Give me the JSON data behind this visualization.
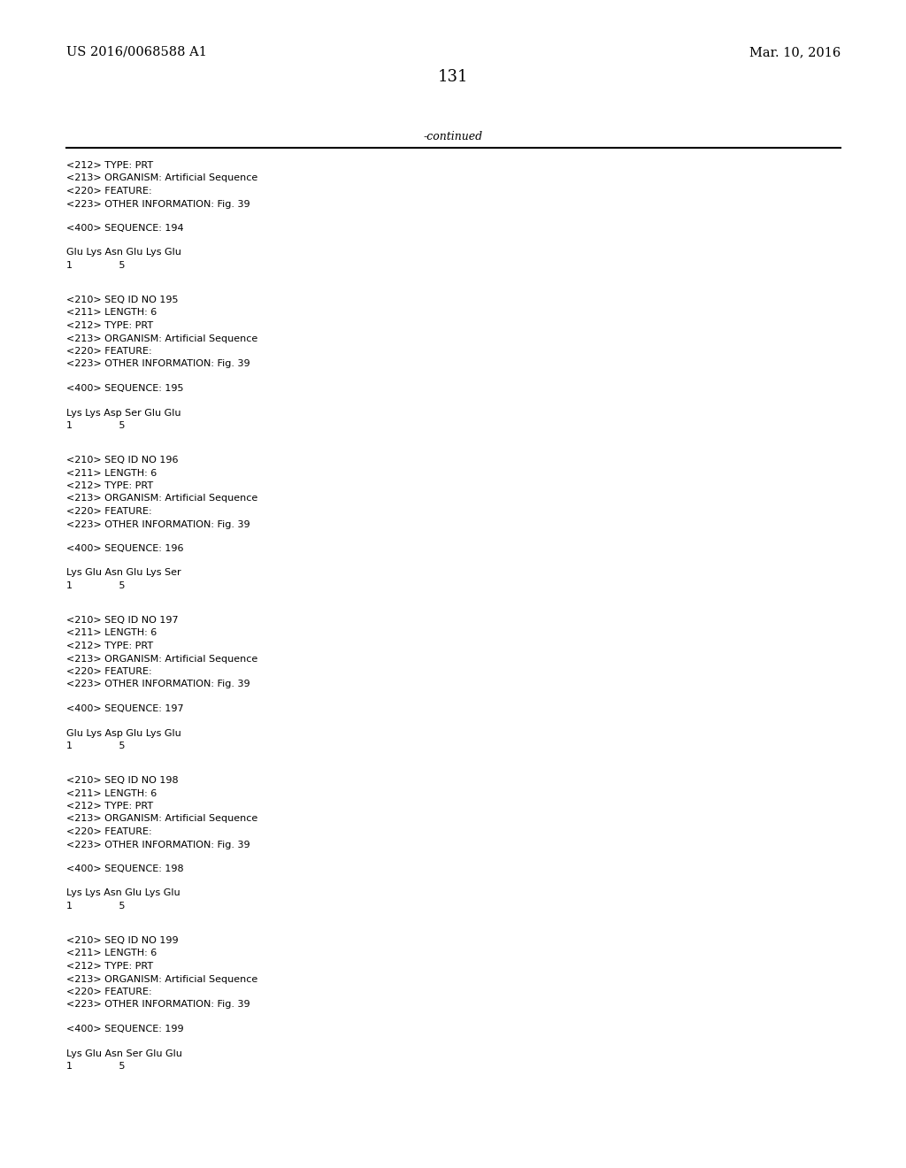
{
  "background_color": "#ffffff",
  "header_left": "US 2016/0068588 A1",
  "header_right": "Mar. 10, 2016",
  "page_number": "131",
  "continued_label": "-continued",
  "mono_font": "Courier New",
  "serif_font": "DejaVu Serif",
  "sections": [
    {
      "type": "partial_entry",
      "lines": [
        "<212> TYPE: PRT",
        "<213> ORGANISM: Artificial Sequence",
        "<220> FEATURE:",
        "<223> OTHER INFORMATION: Fig. 39"
      ],
      "seq_label": "<400> SEQUENCE: 194",
      "seq_line": "Glu Lys Asn Glu Lys Glu",
      "num_line": "1               5"
    },
    {
      "type": "full_entry",
      "id_lines": [
        "<210> SEQ ID NO 195",
        "<211> LENGTH: 6",
        "<212> TYPE: PRT",
        "<213> ORGANISM: Artificial Sequence",
        "<220> FEATURE:",
        "<223> OTHER INFORMATION: Fig. 39"
      ],
      "seq_label": "<400> SEQUENCE: 195",
      "seq_line": "Lys Lys Asp Ser Glu Glu",
      "num_line": "1               5"
    },
    {
      "type": "full_entry",
      "id_lines": [
        "<210> SEQ ID NO 196",
        "<211> LENGTH: 6",
        "<212> TYPE: PRT",
        "<213> ORGANISM: Artificial Sequence",
        "<220> FEATURE:",
        "<223> OTHER INFORMATION: Fig. 39"
      ],
      "seq_label": "<400> SEQUENCE: 196",
      "seq_line": "Lys Glu Asn Glu Lys Ser",
      "num_line": "1               5"
    },
    {
      "type": "full_entry",
      "id_lines": [
        "<210> SEQ ID NO 197",
        "<211> LENGTH: 6",
        "<212> TYPE: PRT",
        "<213> ORGANISM: Artificial Sequence",
        "<220> FEATURE:",
        "<223> OTHER INFORMATION: Fig. 39"
      ],
      "seq_label": "<400> SEQUENCE: 197",
      "seq_line": "Glu Lys Asp Glu Lys Glu",
      "num_line": "1               5"
    },
    {
      "type": "full_entry",
      "id_lines": [
        "<210> SEQ ID NO 198",
        "<211> LENGTH: 6",
        "<212> TYPE: PRT",
        "<213> ORGANISM: Artificial Sequence",
        "<220> FEATURE:",
        "<223> OTHER INFORMATION: Fig. 39"
      ],
      "seq_label": "<400> SEQUENCE: 198",
      "seq_line": "Lys Lys Asn Glu Lys Glu",
      "num_line": "1               5"
    },
    {
      "type": "full_entry",
      "id_lines": [
        "<210> SEQ ID NO 199",
        "<211> LENGTH: 6",
        "<212> TYPE: PRT",
        "<213> ORGANISM: Artificial Sequence",
        "<220> FEATURE:",
        "<223> OTHER INFORMATION: Fig. 39"
      ],
      "seq_label": "<400> SEQUENCE: 199",
      "seq_line": "Lys Glu Asn Ser Glu Glu",
      "num_line": "1               5"
    }
  ]
}
